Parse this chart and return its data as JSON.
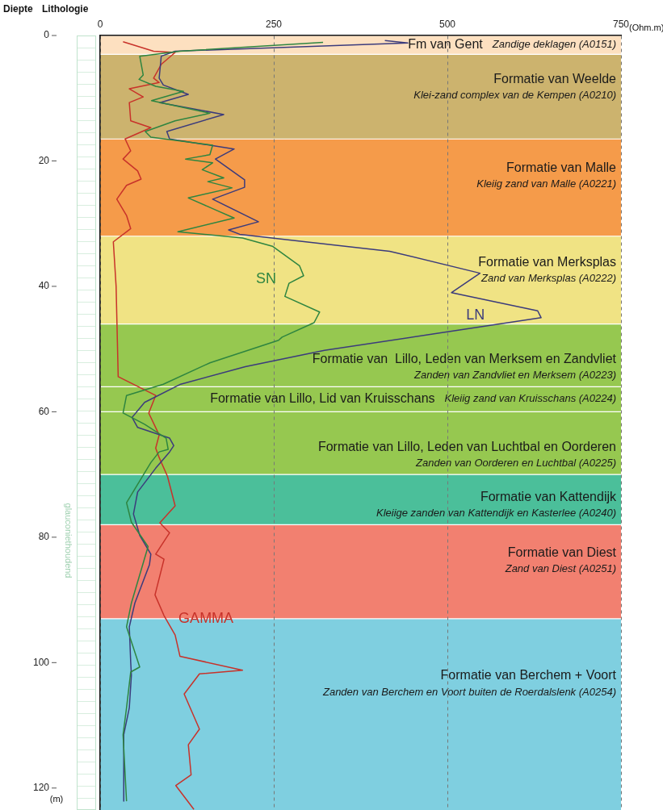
{
  "chart_data": {
    "type": "line",
    "xlabel": "(Ohm.m)",
    "ylabel": "Diepte",
    "annotations": [
      "Lithologie",
      "(m)",
      "glauconiethoudend"
    ],
    "xlim": [
      0,
      750
    ],
    "xticks": [
      0,
      250,
      500,
      750
    ],
    "ylim": [
      123.5,
      0
    ],
    "yticks": [
      0,
      20,
      40,
      60,
      80,
      100,
      120
    ],
    "grid": "x",
    "legend": false,
    "bands": [
      {
        "axis": "y",
        "from": 0,
        "to": 3,
        "label": "Fm van Gent\nZandige deklagen (A0151)",
        "color": "#fde0c0"
      },
      {
        "axis": "y",
        "from": 3,
        "to": 16.5,
        "label": "Formatie van Weelde\nKlei-zand complex van de Kempen (A0210)",
        "color": "#ccb36e"
      },
      {
        "axis": "y",
        "from": 16.5,
        "to": 32,
        "label": "Formatie van Malle\nKleiig zand van Malle (A0221)",
        "color": "#f59b4a"
      },
      {
        "axis": "y",
        "from": 32,
        "to": 46,
        "label": "Formatie van Merksplas\nZand van Merksplas (A0222)",
        "color": "#f0e384"
      },
      {
        "axis": "y",
        "from": 46,
        "to": 56,
        "label": "Formatie van  Lillo, Leden van Merksem en Zandvliet\nZanden van Zandvliet en Merksem (A0223)",
        "color": "#96c850"
      },
      {
        "axis": "y",
        "from": 56,
        "to": 60,
        "label": "Formatie van Lillo, Lid van Kruisschans\nKleiig zand van Kruisschans (A0224)",
        "color": "#96c850"
      },
      {
        "axis": "y",
        "from": 60,
        "to": 70,
        "label": "Formatie van Lillo, Leden van Luchtbal en Oorderen\nZanden van Oorderen en Luchtbal (A0225)",
        "color": "#96c850"
      },
      {
        "axis": "y",
        "from": 70,
        "to": 78,
        "label": "Formatie van Kattendijk\nKleiige zanden van Kattendijk en Kasterlee (A0240)",
        "color": "#4bbf9a"
      },
      {
        "axis": "y",
        "from": 78,
        "to": 93,
        "label": "Formatie van Diest\nZand van Diest (A0251)",
        "color": "#f28070"
      },
      {
        "axis": "y",
        "from": 93,
        "to": 123.5,
        "label": "Formatie van Berchem + Voort\nZanden van Berchem en Voort buiten de Roerdalslenk (A0254)",
        "color": "#7fcfe0"
      }
    ],
    "series": [
      {
        "name": "SN",
        "color": "#2e8540",
        "x": [
          321,
          115,
          57,
          62,
          56,
          80,
          120,
          74,
          158,
          108,
          65,
          73,
          162,
          158,
          123,
          162,
          147,
          178,
          155,
          190,
          127,
          166,
          193,
          112,
          205,
          248,
          287,
          293,
          272,
          266,
          316,
          308,
          262,
          257,
          158,
          91,
          38,
          33,
          64,
          95,
          98,
          85,
          73,
          38,
          45,
          69,
          45,
          38,
          57,
          44,
          38,
          33,
          38
        ],
        "values": [
          1.1,
          2.5,
          3.3,
          6.3,
          7,
          8.1,
          8.9,
          10.4,
          12.4,
          13.6,
          15.3,
          16.2,
          17.5,
          19,
          19.7,
          20.3,
          21.4,
          22.7,
          23.3,
          24.3,
          25.9,
          27.8,
          29.1,
          31.3,
          32.3,
          33.6,
          36.7,
          38.3,
          39.5,
          41.6,
          44.1,
          45.8,
          48.1,
          48.6,
          52.2,
          55.6,
          57.4,
          60.2,
          62,
          64.2,
          66,
          66.4,
          68.1,
          74.5,
          77.6,
          81.5,
          90.5,
          94.3,
          100.7,
          101.5,
          107.2,
          111.5,
          122.1
        ]
      },
      {
        "name": "LN",
        "color": "#3b3b7c",
        "x": [
          410,
          443,
          108,
          88,
          85,
          91,
          127,
          86,
          178,
          96,
          100,
          193,
          166,
          208,
          208,
          162,
          228,
          185,
          201,
          417,
          547,
          506,
          630,
          635,
          479,
          323,
          209,
          116,
          64,
          46,
          54,
          100,
          106,
          100,
          80,
          54,
          48,
          57,
          73,
          71,
          50,
          42,
          44,
          45,
          42,
          34,
          34
        ],
        "values": [
          0.8,
          1.2,
          2.5,
          3.3,
          6.8,
          7.9,
          9.4,
          10.7,
          12.6,
          15.3,
          16.5,
          18.1,
          19.7,
          23,
          24.2,
          26.1,
          29.7,
          31,
          31.7,
          34.4,
          37.9,
          41,
          43.9,
          45,
          47.6,
          50.2,
          52.8,
          55.6,
          58.5,
          60.9,
          62.5,
          64.2,
          65.4,
          66.4,
          69,
          72.8,
          76.3,
          79.7,
          82.7,
          84.4,
          90.5,
          94.3,
          99.9,
          102,
          107.2,
          111.5,
          122.1
        ]
      },
      {
        "name": "GAMMA",
        "color": "#c8322a",
        "x": [
          33,
          77,
          108,
          88,
          77,
          85,
          42,
          62,
          42,
          44,
          73,
          36,
          44,
          33,
          54,
          59,
          38,
          24,
          38,
          44,
          19,
          23,
          26,
          80,
          70,
          85,
          80,
          85,
          97,
          108,
          86,
          100,
          80,
          92,
          79,
          92,
          108,
          115,
          205,
          143,
          121,
          143,
          127,
          131,
          109,
          135
        ],
        "values": [
          1,
          2.5,
          2.7,
          4.6,
          6.8,
          7.5,
          8.5,
          9.8,
          10.7,
          13.6,
          14.7,
          16.5,
          18.4,
          19.7,
          21.6,
          22.9,
          23.9,
          26.1,
          28.7,
          30.8,
          32.9,
          40,
          54.4,
          57.4,
          60.2,
          63.7,
          65.8,
          67.3,
          70.3,
          75,
          77.7,
          79.3,
          82.7,
          83.5,
          89.2,
          92.5,
          95.6,
          99,
          101.2,
          101.8,
          105,
          110.6,
          113.1,
          117.9,
          119.6,
          123.4
        ]
      }
    ]
  }
}
